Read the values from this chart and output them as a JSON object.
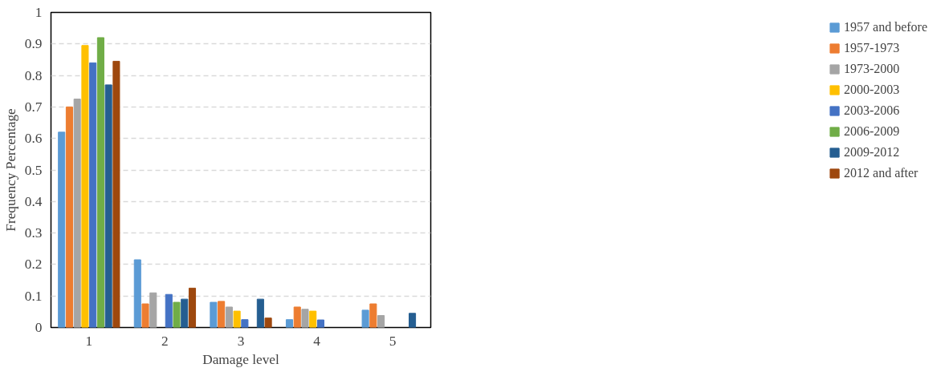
{
  "chart_data": {
    "type": "bar",
    "xlabel": "Damage level",
    "ylabel": "Frequency Percentage",
    "categories": [
      "1",
      "2",
      "3",
      "4",
      "5"
    ],
    "series": [
      {
        "name": "1957 and before",
        "color": "#5b9bd5",
        "values": [
          0.62,
          0.215,
          0.08,
          0.025,
          0.055
        ]
      },
      {
        "name": "1957-1973",
        "color": "#ed7d31",
        "values": [
          0.7,
          0.075,
          0.083,
          0.065,
          0.075
        ]
      },
      {
        "name": "1973-2000",
        "color": "#a5a5a5",
        "values": [
          0.725,
          0.11,
          0.065,
          0.058,
          0.038
        ]
      },
      {
        "name": "2000-2003",
        "color": "#ffc000",
        "values": [
          0.895,
          null,
          0.052,
          0.052,
          null
        ]
      },
      {
        "name": "2003-2006",
        "color": "#4472c4",
        "values": [
          0.84,
          0.105,
          0.025,
          0.024,
          null
        ]
      },
      {
        "name": "2006-2009",
        "color": "#70ad47",
        "values": [
          0.92,
          0.08,
          null,
          null,
          null
        ]
      },
      {
        "name": "2009-2012",
        "color": "#255e91",
        "values": [
          0.77,
          0.09,
          0.09,
          null,
          0.045
        ]
      },
      {
        "name": "2012 and after",
        "color": "#9e480e",
        "values": [
          0.845,
          0.125,
          0.03,
          null,
          null
        ]
      }
    ],
    "ylim": [
      0,
      1
    ],
    "yticks": [
      0,
      0.1,
      0.2,
      0.3,
      0.4,
      0.5,
      0.6,
      0.7,
      0.8,
      0.9,
      1
    ],
    "grid": "y",
    "legend": "right"
  }
}
